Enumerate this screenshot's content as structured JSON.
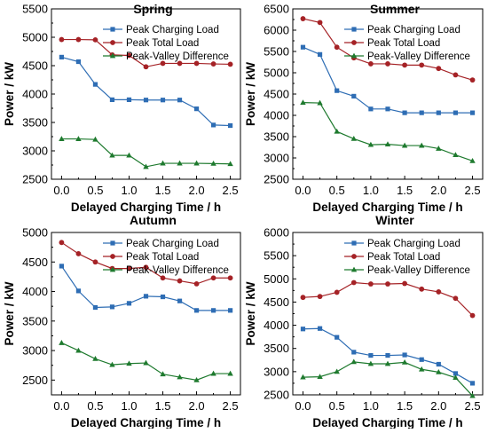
{
  "chart_data": [
    {
      "type": "line",
      "title": "Spring",
      "xlabel": "Delayed Charging Time / h",
      "ylabel": "Power / kW",
      "xlim": [
        -0.15,
        2.65
      ],
      "ylim": [
        2500,
        5500
      ],
      "xticks": [
        "0.0",
        "0.5",
        "1.0",
        "1.5",
        "2.0",
        "2.5"
      ],
      "yticks": [
        "2500",
        "3000",
        "3500",
        "4000",
        "4500",
        "5000",
        "5500"
      ],
      "legend": "top-right",
      "grid": false,
      "x": [
        0,
        0.25,
        0.5,
        0.75,
        1.0,
        1.25,
        1.5,
        1.75,
        2.0,
        2.25,
        2.5
      ],
      "series": [
        {
          "name": "Peak Charging Load",
          "color": "#2e6db4",
          "marker": "square",
          "values": [
            4650,
            4570,
            4170,
            3900,
            3900,
            3895,
            3895,
            3895,
            3740,
            3455,
            3445
          ]
        },
        {
          "name": "Peak Total Load",
          "color": "#a52226",
          "marker": "circle",
          "values": [
            4960,
            4960,
            4955,
            4690,
            4680,
            4480,
            4540,
            4540,
            4540,
            4530,
            4525
          ]
        },
        {
          "name": "Peak-Valley Difference",
          "color": "#1e7a2e",
          "marker": "triangle",
          "values": [
            3210,
            3210,
            3200,
            2920,
            2920,
            2720,
            2780,
            2780,
            2780,
            2775,
            2770
          ]
        }
      ]
    },
    {
      "type": "line",
      "title": "Summer",
      "xlabel": "Delayed Charging Time / h",
      "ylabel": "Power / kW",
      "xlim": [
        -0.15,
        2.65
      ],
      "ylim": [
        2500,
        6500
      ],
      "xticks": [
        "0.0",
        "0.5",
        "1.0",
        "1.5",
        "2.0",
        "2.5"
      ],
      "yticks": [
        "2500",
        "3000",
        "3500",
        "4000",
        "4500",
        "5000",
        "5500",
        "6000",
        "6500"
      ],
      "legend": "top-right",
      "grid": false,
      "x": [
        0,
        0.25,
        0.5,
        0.75,
        1.0,
        1.25,
        1.5,
        1.75,
        2.0,
        2.25,
        2.5
      ],
      "series": [
        {
          "name": "Peak Charging Load",
          "color": "#2e6db4",
          "marker": "square",
          "values": [
            5600,
            5430,
            4580,
            4450,
            4150,
            4150,
            4060,
            4060,
            4060,
            4060,
            4060
          ]
        },
        {
          "name": "Peak Total Load",
          "color": "#a52226",
          "marker": "circle",
          "values": [
            6270,
            6180,
            5600,
            5350,
            5210,
            5210,
            5180,
            5180,
            5100,
            4950,
            4830
          ]
        },
        {
          "name": "Peak-Valley Difference",
          "color": "#1e7a2e",
          "marker": "triangle",
          "values": [
            4300,
            4290,
            3620,
            3450,
            3310,
            3320,
            3290,
            3290,
            3220,
            3070,
            2930
          ]
        }
      ]
    },
    {
      "type": "line",
      "title": "Autumn",
      "xlabel": "Delayed Charging Time / h",
      "ylabel": "Power / kW",
      "xlim": [
        -0.15,
        2.65
      ],
      "ylim": [
        2250,
        5000
      ],
      "xticks": [
        "0.0",
        "0.5",
        "1.0",
        "1.5",
        "2.0",
        "2.5"
      ],
      "yticks": [
        "2500",
        "3000",
        "3500",
        "4000",
        "4500",
        "5000"
      ],
      "legend": "top-right",
      "grid": false,
      "x": [
        0,
        0.25,
        0.5,
        0.75,
        1.0,
        1.25,
        1.5,
        1.75,
        2.0,
        2.25,
        2.5
      ],
      "series": [
        {
          "name": "Peak Charging Load",
          "color": "#2e6db4",
          "marker": "square",
          "values": [
            4430,
            4010,
            3730,
            3740,
            3800,
            3920,
            3910,
            3840,
            3680,
            3680,
            3680
          ]
        },
        {
          "name": "Peak Total Load",
          "color": "#a52226",
          "marker": "circle",
          "values": [
            4830,
            4640,
            4500,
            4390,
            4390,
            4410,
            4230,
            4180,
            4130,
            4230,
            4230
          ]
        },
        {
          "name": "Peak-Valley Difference",
          "color": "#1e7a2e",
          "marker": "triangle",
          "values": [
            3130,
            3000,
            2860,
            2760,
            2780,
            2790,
            2600,
            2550,
            2500,
            2610,
            2610
          ]
        }
      ]
    },
    {
      "type": "line",
      "title": "Winter",
      "xlabel": "Delayed Charging Time / h",
      "ylabel": "Power / kW",
      "xlim": [
        -0.15,
        2.65
      ],
      "ylim": [
        2500,
        6000
      ],
      "xticks": [
        "0.0",
        "0.5",
        "1.0",
        "1.5",
        "2.0",
        "2.5"
      ],
      "yticks": [
        "2500",
        "3000",
        "3500",
        "4000",
        "4500",
        "5000",
        "5500",
        "6000"
      ],
      "legend": "top-right",
      "grid": false,
      "x": [
        0,
        0.25,
        0.5,
        0.75,
        1.0,
        1.25,
        1.5,
        1.75,
        2.0,
        2.25,
        2.5
      ],
      "series": [
        {
          "name": "Peak Charging Load",
          "color": "#2e6db4",
          "marker": "square",
          "values": [
            3920,
            3930,
            3740,
            3420,
            3350,
            3350,
            3360,
            3260,
            3160,
            2960,
            2750
          ]
        },
        {
          "name": "Peak Total Load",
          "color": "#a52226",
          "marker": "circle",
          "values": [
            4600,
            4620,
            4710,
            4920,
            4890,
            4890,
            4900,
            4780,
            4720,
            4580,
            4210
          ]
        },
        {
          "name": "Peak-Valley Difference",
          "color": "#1e7a2e",
          "marker": "triangle",
          "values": [
            2880,
            2890,
            3000,
            3210,
            3170,
            3170,
            3200,
            3050,
            2990,
            2870,
            2480
          ]
        }
      ]
    }
  ]
}
